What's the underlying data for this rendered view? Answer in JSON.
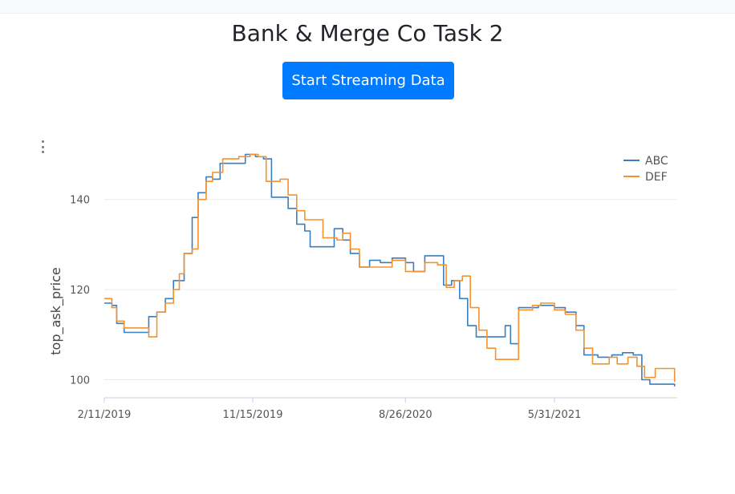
{
  "page": {
    "title": "Bank & Merge Co Task 2"
  },
  "controls": {
    "stream_button": "Start Streaming Data"
  },
  "chart_data": {
    "type": "line",
    "ylabel": "top_ask_price",
    "ylim": [
      96,
      154
    ],
    "yticks": [
      100,
      120,
      140
    ],
    "xlim": [
      "2019-02-11",
      "2022-01-15"
    ],
    "xticks": [
      "2019-02-11",
      "2019-11-15",
      "2020-08-26",
      "2021-05-31"
    ],
    "xtick_labels": [
      "2/11/2019",
      "11/15/2019",
      "8/26/2020",
      "5/31/2021"
    ],
    "grid": true,
    "legend_position": "top-right",
    "series": [
      {
        "name": "ABC",
        "color": "#3a7ebf",
        "points": [
          [
            "2019-02-11",
            117
          ],
          [
            "2019-02-25",
            116.5
          ],
          [
            "2019-03-06",
            112.5
          ],
          [
            "2019-03-20",
            110.5
          ],
          [
            "2019-04-20",
            110.5
          ],
          [
            "2019-05-05",
            114
          ],
          [
            "2019-05-20",
            115
          ],
          [
            "2019-06-05",
            118
          ],
          [
            "2019-06-20",
            122
          ],
          [
            "2019-07-01",
            122
          ],
          [
            "2019-07-10",
            128
          ],
          [
            "2019-07-25",
            136
          ],
          [
            "2019-08-05",
            141.5
          ],
          [
            "2019-08-20",
            145
          ],
          [
            "2019-09-01",
            144.5
          ],
          [
            "2019-09-15",
            148
          ],
          [
            "2019-10-15",
            148
          ],
          [
            "2019-11-01",
            150
          ],
          [
            "2019-11-20",
            149.5
          ],
          [
            "2019-12-05",
            149
          ],
          [
            "2019-12-20",
            140.5
          ],
          [
            "2020-01-10",
            140.5
          ],
          [
            "2020-01-20",
            138
          ],
          [
            "2020-02-05",
            134.5
          ],
          [
            "2020-02-20",
            133
          ],
          [
            "2020-03-01",
            129.5
          ],
          [
            "2020-03-20",
            129.5
          ],
          [
            "2020-04-15",
            133.5
          ],
          [
            "2020-05-01",
            131
          ],
          [
            "2020-05-15",
            128
          ],
          [
            "2020-06-01",
            125
          ],
          [
            "2020-06-20",
            126.5
          ],
          [
            "2020-07-10",
            126
          ],
          [
            "2020-08-01",
            127
          ],
          [
            "2020-08-26",
            126
          ],
          [
            "2020-09-10",
            124
          ],
          [
            "2020-10-01",
            127.5
          ],
          [
            "2020-10-25",
            127.5
          ],
          [
            "2020-11-05",
            121
          ],
          [
            "2020-11-20",
            122
          ],
          [
            "2020-12-05",
            118
          ],
          [
            "2020-12-20",
            112
          ],
          [
            "2021-01-05",
            109.5
          ],
          [
            "2021-01-25",
            109.5
          ],
          [
            "2021-02-15",
            109.5
          ],
          [
            "2021-02-28",
            112
          ],
          [
            "2021-03-10",
            108
          ],
          [
            "2021-03-25",
            116
          ],
          [
            "2021-04-15",
            116
          ],
          [
            "2021-05-01",
            116.5
          ],
          [
            "2021-05-31",
            116
          ],
          [
            "2021-06-20",
            115
          ],
          [
            "2021-07-10",
            112
          ],
          [
            "2021-07-25",
            105.5
          ],
          [
            "2021-08-20",
            105
          ],
          [
            "2021-09-15",
            105.5
          ],
          [
            "2021-10-05",
            106
          ],
          [
            "2021-10-25",
            105.5
          ],
          [
            "2021-11-10",
            100
          ],
          [
            "2021-11-25",
            99
          ],
          [
            "2022-01-10",
            98.5
          ]
        ]
      },
      {
        "name": "DEF",
        "color": "#f5922f",
        "points": [
          [
            "2019-02-11",
            118
          ],
          [
            "2019-02-25",
            116
          ],
          [
            "2019-03-06",
            113
          ],
          [
            "2019-03-20",
            111.5
          ],
          [
            "2019-04-25",
            111.5
          ],
          [
            "2019-05-05",
            109.5
          ],
          [
            "2019-05-20",
            115
          ],
          [
            "2019-06-05",
            117
          ],
          [
            "2019-06-20",
            120
          ],
          [
            "2019-07-01",
            123.5
          ],
          [
            "2019-07-10",
            128
          ],
          [
            "2019-07-25",
            129
          ],
          [
            "2019-08-05",
            140
          ],
          [
            "2019-08-20",
            144
          ],
          [
            "2019-09-01",
            146
          ],
          [
            "2019-09-20",
            149
          ],
          [
            "2019-10-20",
            149.5
          ],
          [
            "2019-11-10",
            150
          ],
          [
            "2019-11-25",
            149.5
          ],
          [
            "2019-12-10",
            144
          ],
          [
            "2020-01-05",
            144.5
          ],
          [
            "2020-01-20",
            141
          ],
          [
            "2020-02-05",
            137.5
          ],
          [
            "2020-02-20",
            135.5
          ],
          [
            "2020-03-10",
            135.5
          ],
          [
            "2020-03-25",
            131.5
          ],
          [
            "2020-04-20",
            131
          ],
          [
            "2020-05-01",
            132.5
          ],
          [
            "2020-05-15",
            129
          ],
          [
            "2020-06-01",
            125
          ],
          [
            "2020-06-20",
            125
          ],
          [
            "2020-07-10",
            125
          ],
          [
            "2020-08-01",
            126.5
          ],
          [
            "2020-08-26",
            124
          ],
          [
            "2020-09-20",
            124
          ],
          [
            "2020-10-01",
            126
          ],
          [
            "2020-10-25",
            125.5
          ],
          [
            "2020-11-10",
            120.5
          ],
          [
            "2020-11-25",
            122
          ],
          [
            "2020-12-10",
            123
          ],
          [
            "2020-12-25",
            116
          ],
          [
            "2021-01-10",
            111
          ],
          [
            "2021-01-25",
            107
          ],
          [
            "2021-02-10",
            104.5
          ],
          [
            "2021-03-10",
            104.5
          ],
          [
            "2021-03-25",
            115.5
          ],
          [
            "2021-04-20",
            116.5
          ],
          [
            "2021-05-05",
            117
          ],
          [
            "2021-05-31",
            115.5
          ],
          [
            "2021-06-20",
            114.5
          ],
          [
            "2021-07-10",
            111
          ],
          [
            "2021-07-25",
            107
          ],
          [
            "2021-08-10",
            103.5
          ],
          [
            "2021-09-10",
            105
          ],
          [
            "2021-09-25",
            103.5
          ],
          [
            "2021-10-15",
            105
          ],
          [
            "2021-11-01",
            103
          ],
          [
            "2021-11-15",
            100.5
          ],
          [
            "2021-12-05",
            102.5
          ],
          [
            "2022-01-10",
            99.5
          ]
        ]
      }
    ]
  }
}
